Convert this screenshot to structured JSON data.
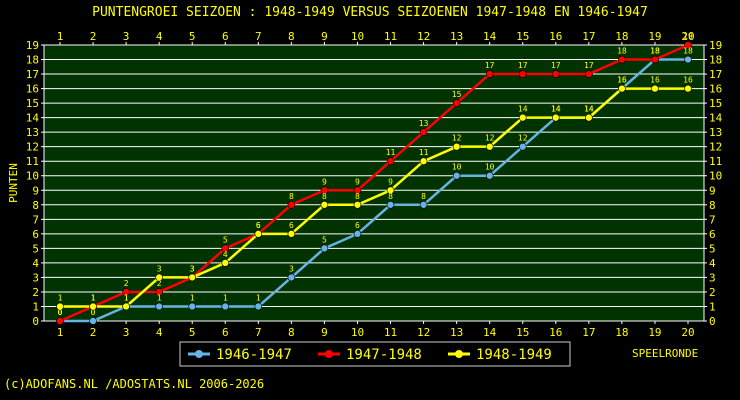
{
  "chart_data": {
    "type": "line",
    "title": "PUNTENGROEI  SEIZOEN : 1948-1949 VERSUS SEIZOENEN 1947-1948 EN 1946-1947",
    "xlabel": "SPEELRONDE",
    "ylabel": "PUNTEN",
    "x": [
      1,
      2,
      3,
      4,
      5,
      6,
      7,
      8,
      9,
      10,
      11,
      12,
      13,
      14,
      15,
      16,
      17,
      18,
      19,
      20
    ],
    "xlim": [
      1,
      20
    ],
    "ylim": [
      0,
      19
    ],
    "grid": true,
    "legend": "bottom",
    "background": "#003300",
    "series": [
      {
        "name": "1946-1947",
        "color": "#66b3e6",
        "values": [
          0,
          0,
          1,
          1,
          1,
          1,
          1,
          3,
          5,
          6,
          8,
          8,
          10,
          10,
          12,
          14,
          14,
          16,
          18,
          18
        ]
      },
      {
        "name": "1947-1948",
        "color": "#ff0000",
        "values": [
          0,
          1,
          2,
          2,
          3,
          5,
          6,
          8,
          9,
          9,
          11,
          13,
          15,
          17,
          17,
          17,
          17,
          18,
          18,
          19
        ]
      },
      {
        "name": "1948-1949",
        "color": "#ffff00",
        "values": [
          1,
          1,
          1,
          3,
          3,
          4,
          6,
          6,
          8,
          8,
          9,
          11,
          12,
          12,
          14,
          14,
          14,
          16,
          16,
          16
        ]
      }
    ]
  },
  "footer": "(c)ADOFANS.NL /ADOSTATS.NL 2006-2026"
}
